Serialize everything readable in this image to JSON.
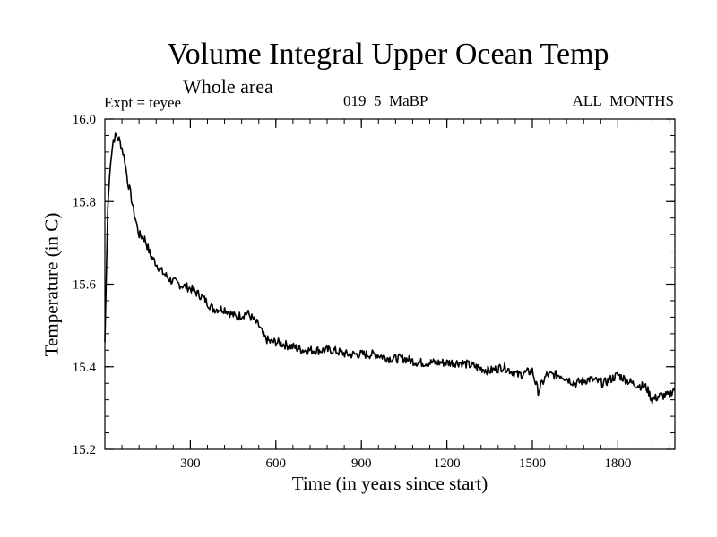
{
  "chart_data": {
    "type": "line",
    "title": "Volume Integral Upper Ocean Temp",
    "subtitle": "Whole area",
    "experiment_label": "Expt = teyee",
    "case_label": "019_5_MaBP",
    "months_label": "ALL_MONTHS",
    "xlabel": "Time (in years since start)",
    "ylabel": "Temperature (in C)",
    "xlim": [
      0,
      2000
    ],
    "ylim": [
      15.2,
      16.0
    ],
    "x_ticks": [
      300,
      600,
      900,
      1200,
      1500,
      1800
    ],
    "x_tick_labels": [
      "300",
      "600",
      "900",
      "1200",
      "1500",
      "1800"
    ],
    "y_ticks": [
      15.2,
      15.4,
      15.6,
      15.8,
      16.0
    ],
    "y_tick_labels": [
      "15.2",
      "15.4",
      "15.6",
      "15.8",
      "16.0"
    ],
    "grid": false,
    "series": [
      {
        "name": "teyee",
        "x": [
          0,
          5,
          10,
          20,
          30,
          40,
          50,
          60,
          70,
          80,
          90,
          100,
          110,
          120,
          140,
          160,
          180,
          200,
          230,
          260,
          300,
          340,
          380,
          420,
          460,
          500,
          540,
          560,
          580,
          600,
          650,
          700,
          750,
          800,
          850,
          900,
          950,
          1000,
          1050,
          1100,
          1150,
          1200,
          1250,
          1300,
          1350,
          1400,
          1450,
          1500,
          1520,
          1550,
          1600,
          1650,
          1700,
          1750,
          1800,
          1850,
          1900,
          1920,
          1950,
          1980,
          2000
        ],
        "y": [
          15.46,
          15.62,
          15.78,
          15.9,
          15.95,
          15.96,
          15.95,
          15.93,
          15.9,
          15.85,
          15.82,
          15.78,
          15.75,
          15.72,
          15.71,
          15.67,
          15.65,
          15.63,
          15.61,
          15.6,
          15.59,
          15.57,
          15.54,
          15.54,
          15.52,
          15.53,
          15.5,
          15.47,
          15.46,
          15.46,
          15.45,
          15.44,
          15.44,
          15.44,
          15.43,
          15.43,
          15.43,
          15.42,
          15.42,
          15.41,
          15.41,
          15.41,
          15.41,
          15.4,
          15.39,
          15.4,
          15.38,
          15.39,
          15.34,
          15.38,
          15.38,
          15.36,
          15.37,
          15.36,
          15.38,
          15.36,
          15.35,
          15.32,
          15.33,
          15.33,
          15.35
        ]
      }
    ]
  }
}
